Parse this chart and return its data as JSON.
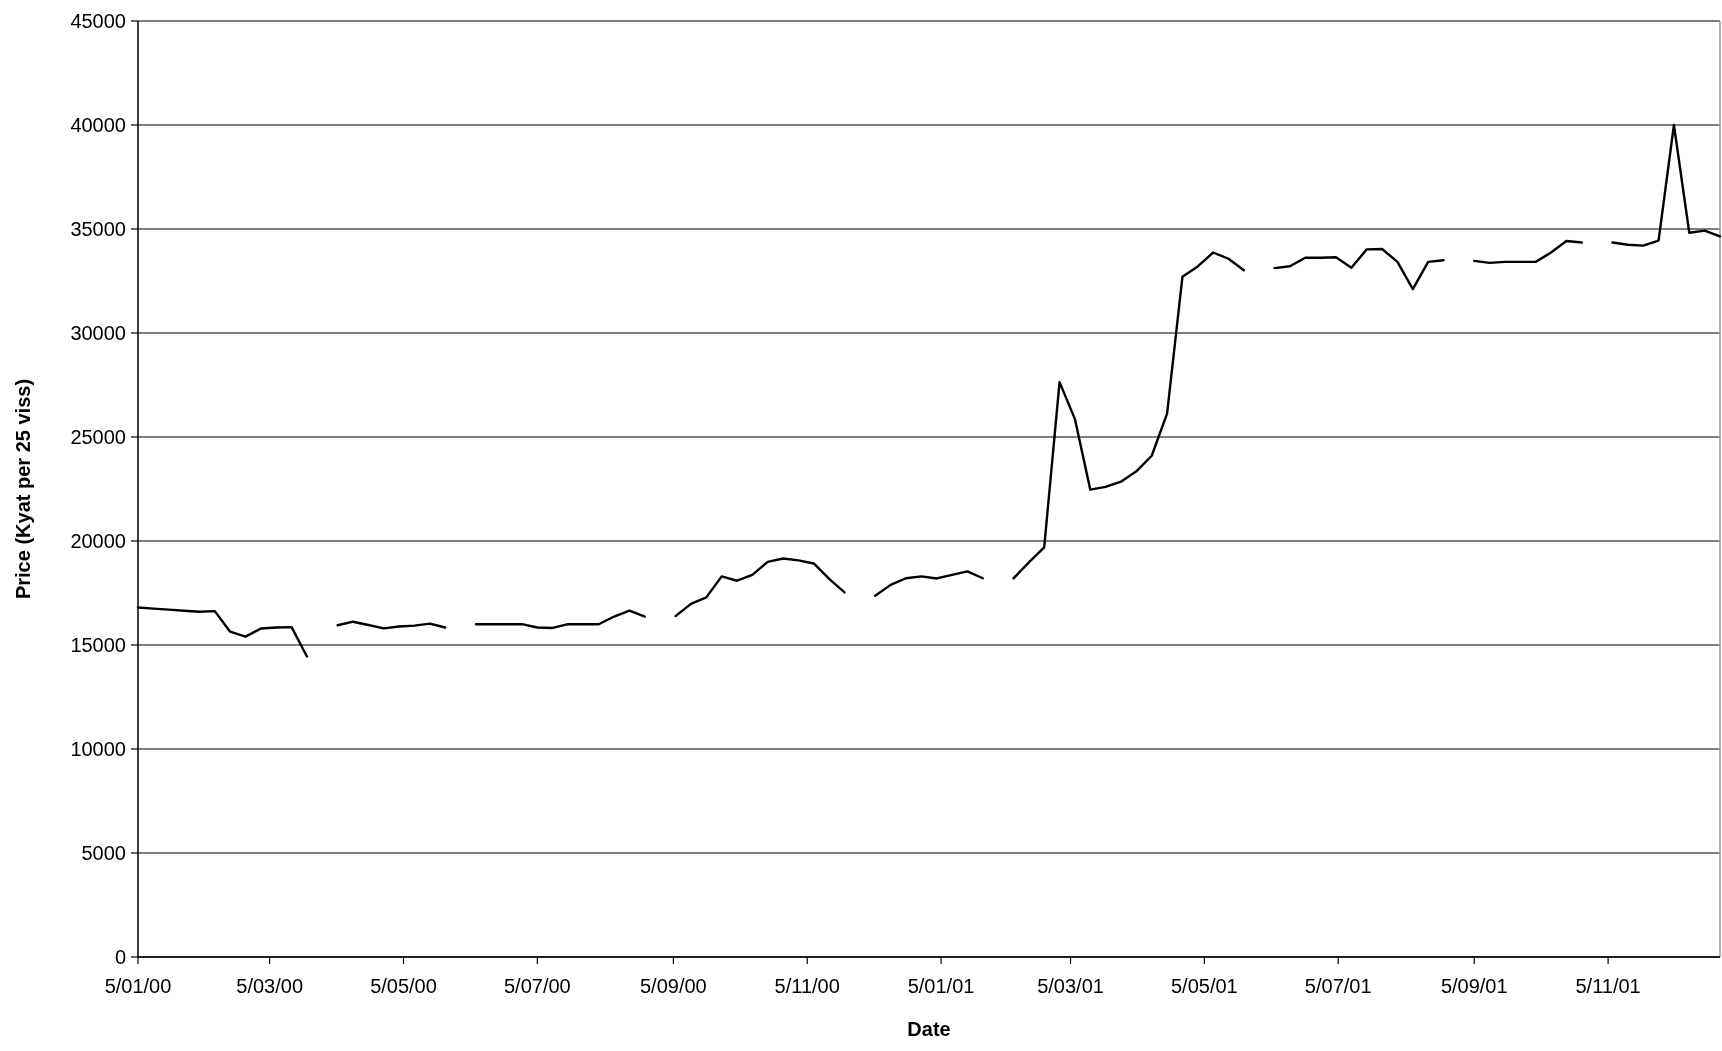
{
  "chart_data": {
    "type": "line",
    "xlabel": "Date",
    "ylabel": "Price (Kyat per 25 viss)",
    "x": [
      "2000-01-05",
      "2000-01-12",
      "2000-01-19",
      "2000-01-26",
      "2000-02-02",
      "2000-02-09",
      "2000-02-16",
      "2000-02-23",
      "2000-03-01",
      "2000-03-08",
      "2000-03-15",
      "2000-03-22",
      "2000-03-29",
      "2000-04-05",
      "2000-04-12",
      "2000-04-19",
      "2000-04-26",
      "2000-05-03",
      "2000-05-10",
      "2000-05-17",
      "2000-05-24",
      "2000-05-31",
      "2000-06-07",
      "2000-06-14",
      "2000-06-21",
      "2000-06-28",
      "2000-07-05",
      "2000-07-12",
      "2000-07-19",
      "2000-07-26",
      "2000-08-02",
      "2000-08-09",
      "2000-08-16",
      "2000-08-23",
      "2000-08-30",
      "2000-09-06",
      "2000-09-13",
      "2000-09-20",
      "2000-09-27",
      "2000-10-04",
      "2000-10-11",
      "2000-10-18",
      "2000-10-25",
      "2000-11-01",
      "2000-11-08",
      "2000-11-15",
      "2000-11-22",
      "2000-11-29",
      "2000-12-06",
      "2000-12-13",
      "2000-12-20",
      "2000-12-27",
      "2001-01-03",
      "2001-01-10",
      "2001-01-17",
      "2001-01-24",
      "2001-01-31",
      "2001-02-07",
      "2001-02-14",
      "2001-02-21",
      "2001-02-28",
      "2001-03-07",
      "2001-03-14",
      "2001-03-21",
      "2001-03-28",
      "2001-04-04",
      "2001-04-11",
      "2001-04-18",
      "2001-04-25",
      "2001-05-02",
      "2001-05-09",
      "2001-05-16",
      "2001-05-23",
      "2001-05-30",
      "2001-06-06",
      "2001-06-13",
      "2001-06-20",
      "2001-06-27",
      "2001-07-04",
      "2001-07-11",
      "2001-07-18",
      "2001-07-25",
      "2001-08-01",
      "2001-08-08",
      "2001-08-15",
      "2001-08-22",
      "2001-08-29",
      "2001-09-05",
      "2001-09-12",
      "2001-09-19",
      "2001-09-26",
      "2001-10-03",
      "2001-10-10",
      "2001-10-17",
      "2001-10-24",
      "2001-10-31",
      "2001-11-07",
      "2001-11-14",
      "2001-11-21",
      "2001-11-28",
      "2001-12-05",
      "2001-12-12",
      "2001-12-19",
      "2001-12-26"
    ],
    "series": [
      {
        "color": "#000000",
        "values": [
          16800,
          16750,
          16700,
          16650,
          16600,
          16630,
          15640,
          15400,
          15790,
          15840,
          15860,
          14450,
          null,
          15950,
          16120,
          15960,
          15800,
          15890,
          15930,
          16030,
          15840,
          null,
          16000,
          16000,
          16000,
          16000,
          15840,
          15820,
          16000,
          16000,
          16000,
          16370,
          16650,
          16370,
          null,
          16390,
          16980,
          17290,
          18300,
          18090,
          18370,
          19000,
          19160,
          19070,
          18920,
          18180,
          17530,
          null,
          17370,
          17890,
          18210,
          18300,
          18200,
          18370,
          18540,
          18210,
          null,
          18200,
          18970,
          19690,
          27640,
          25860,
          22470,
          22600,
          22850,
          23350,
          24100,
          26120,
          32700,
          33200,
          33870,
          33570,
          33020,
          null,
          33120,
          33210,
          33620,
          33620,
          33640,
          33140,
          34020,
          34040,
          33420,
          32110,
          33420,
          33500,
          null,
          33470,
          33370,
          33420,
          33420,
          33420,
          33870,
          34420,
          34350,
          null,
          34350,
          34240,
          34200,
          34440,
          40000,
          34820,
          34920,
          34650
        ]
      }
    ],
    "xlim": [
      "2000-01-05",
      "2001-12-26"
    ],
    "xticks": [
      {
        "value": "2000-01-05",
        "label": "5/01/00"
      },
      {
        "value": "2000-03-05",
        "label": "5/03/00"
      },
      {
        "value": "2000-05-05",
        "label": "5/05/00"
      },
      {
        "value": "2000-07-05",
        "label": "5/07/00"
      },
      {
        "value": "2000-09-05",
        "label": "5/09/00"
      },
      {
        "value": "2000-11-05",
        "label": "5/11/00"
      },
      {
        "value": "2001-01-05",
        "label": "5/01/01"
      },
      {
        "value": "2001-03-05",
        "label": "5/03/01"
      },
      {
        "value": "2001-05-05",
        "label": "5/05/01"
      },
      {
        "value": "2001-07-05",
        "label": "5/07/01"
      },
      {
        "value": "2001-09-05",
        "label": "5/09/01"
      },
      {
        "value": "2001-11-05",
        "label": "5/11/01"
      }
    ],
    "ylim": [
      0,
      45000
    ],
    "yticks": [
      0,
      5000,
      10000,
      15000,
      20000,
      25000,
      30000,
      35000,
      40000,
      45000
    ],
    "grid": "y",
    "marker": "none",
    "line_style": "solid"
  }
}
